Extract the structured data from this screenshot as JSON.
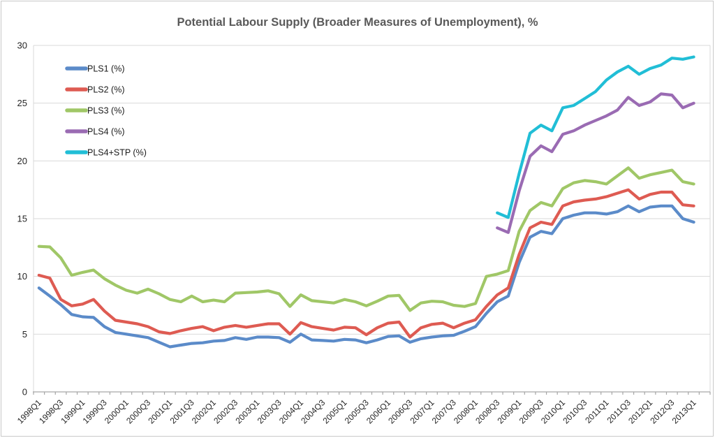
{
  "chart_data": {
    "type": "line",
    "title": "Potential Labour Supply (Broader Measures of Unemployment), %",
    "title_color": "#595959",
    "grid": "horizontal",
    "grid_color": "#d9d9d9",
    "axis_color": "#a6a6a6",
    "tick_label_color": "#262626",
    "legend_position": "top-left-inside",
    "y_axis": {
      "min": 0,
      "max": 30,
      "tick_interval": 5,
      "tick_labels": [
        "0",
        "5",
        "10",
        "15",
        "20",
        "25",
        "30"
      ]
    },
    "x_axis": {
      "label_every": 2,
      "categories": [
        "1998Q1",
        "1998Q2",
        "1998Q3",
        "1998Q4",
        "1999Q1",
        "1999Q2",
        "1999Q3",
        "1999Q4",
        "2000Q1",
        "2000Q2",
        "2000Q3",
        "2000Q4",
        "2001Q1",
        "2001Q2",
        "2001Q3",
        "2001Q4",
        "2002Q1",
        "2002Q2",
        "2002Q3",
        "2002Q4",
        "2003Q1",
        "2003Q2",
        "2003Q3",
        "2003Q4",
        "2004Q1",
        "2004Q2",
        "2004Q3",
        "2004Q4",
        "2005Q1",
        "2005Q2",
        "2005Q3",
        "2005Q4",
        "2006Q1",
        "2006Q2",
        "2006Q3",
        "2006Q4",
        "2007Q1",
        "2007Q2",
        "2007Q3",
        "2007Q4",
        "2008Q1",
        "2008Q2",
        "2008Q3",
        "2008Q4",
        "2009Q1",
        "2009Q2",
        "2009Q3",
        "2009Q4",
        "2010Q1",
        "2010Q2",
        "2010Q3",
        "2010Q4",
        "2011Q1",
        "2011Q2",
        "2011Q3",
        "2011Q4",
        "2012Q1",
        "2012Q2",
        "2012Q3",
        "2012Q4",
        "2013Q1"
      ]
    },
    "series": [
      {
        "name": "PLS1 (%)",
        "color": "#5b8bc9",
        "start_index": 0,
        "values": [
          9.0,
          8.3,
          7.55,
          6.7,
          6.5,
          6.45,
          5.65,
          5.15,
          5.0,
          4.85,
          4.7,
          4.3,
          3.9,
          4.05,
          4.2,
          4.25,
          4.4,
          4.45,
          4.7,
          4.55,
          4.75,
          4.75,
          4.7,
          4.3,
          5.0,
          4.5,
          4.45,
          4.4,
          4.55,
          4.5,
          4.25,
          4.5,
          4.8,
          4.85,
          4.3,
          4.6,
          4.75,
          4.85,
          4.9,
          5.25,
          5.65,
          6.8,
          7.8,
          8.3,
          11.2,
          13.4,
          13.9,
          13.7,
          15.0,
          15.3,
          15.5,
          15.5,
          15.4,
          15.6,
          16.1,
          15.6,
          16.0,
          16.1,
          16.1,
          15.0,
          14.7
        ]
      },
      {
        "name": "PLS2 (%)",
        "color": "#de5b52",
        "start_index": 0,
        "values": [
          10.1,
          9.85,
          8.0,
          7.45,
          7.6,
          8.0,
          7.0,
          6.2,
          6.05,
          5.9,
          5.65,
          5.2,
          5.05,
          5.3,
          5.5,
          5.65,
          5.3,
          5.6,
          5.75,
          5.6,
          5.75,
          5.9,
          5.9,
          5.0,
          6.0,
          5.65,
          5.5,
          5.35,
          5.6,
          5.55,
          4.95,
          5.55,
          5.95,
          6.05,
          4.75,
          5.55,
          5.85,
          5.95,
          5.55,
          5.95,
          6.25,
          7.4,
          8.4,
          9.0,
          11.9,
          14.2,
          14.7,
          14.5,
          16.1,
          16.45,
          16.6,
          16.7,
          16.9,
          17.2,
          17.5,
          16.7,
          17.1,
          17.3,
          17.3,
          16.2,
          16.1
        ]
      },
      {
        "name": "PLS3 (%)",
        "color": "#a0c767",
        "start_index": 0,
        "values": [
          12.6,
          12.55,
          11.6,
          10.1,
          10.35,
          10.55,
          9.8,
          9.25,
          8.8,
          8.55,
          8.9,
          8.5,
          8.0,
          7.8,
          8.3,
          7.8,
          7.95,
          7.8,
          8.55,
          8.6,
          8.65,
          8.75,
          8.5,
          7.4,
          8.4,
          7.9,
          7.8,
          7.7,
          8.0,
          7.8,
          7.45,
          7.85,
          8.3,
          8.35,
          7.05,
          7.7,
          7.85,
          7.8,
          7.5,
          7.4,
          7.65,
          10.0,
          10.2,
          10.5,
          13.9,
          15.7,
          16.4,
          16.1,
          17.6,
          18.1,
          18.3,
          18.2,
          18.0,
          18.7,
          19.4,
          18.5,
          18.8,
          19.0,
          19.2,
          18.2,
          18.0
        ]
      },
      {
        "name": "PLS4 (%)",
        "color": "#9a6bb3",
        "start_index": 42,
        "values": [
          14.2,
          13.8,
          17.4,
          20.4,
          21.3,
          20.8,
          22.3,
          22.6,
          23.1,
          23.5,
          23.9,
          24.4,
          25.5,
          24.8,
          25.1,
          25.8,
          25.7,
          24.6,
          25.0
        ]
      },
      {
        "name": "PLS4+STP (%)",
        "color": "#21bed6",
        "start_index": 42,
        "values": [
          15.5,
          15.1,
          18.9,
          22.4,
          23.1,
          22.6,
          24.6,
          24.8,
          25.4,
          26.0,
          27.0,
          27.7,
          28.2,
          27.5,
          28.0,
          28.3,
          28.9,
          28.8,
          29.0
        ]
      }
    ]
  }
}
